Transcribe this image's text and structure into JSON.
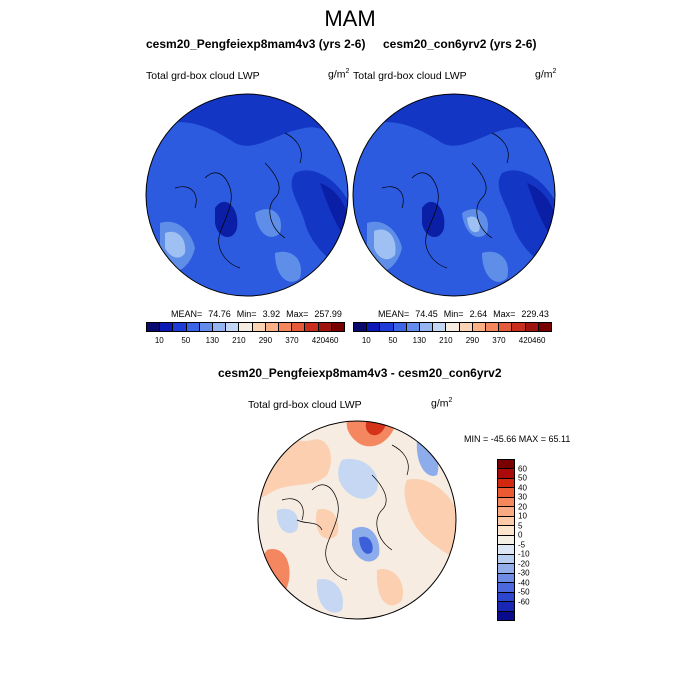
{
  "page": {
    "title": "MAM"
  },
  "panels": [
    {
      "case_title": "cesm20_Pengfeiexp8mam4v3 (yrs 2-6)",
      "variable": "Total grd-box cloud LWP",
      "units_base": "g/m",
      "units_exp": "2",
      "stats": {
        "mean_label": "MEAN=",
        "mean": "74.76",
        "min_label": "Min=",
        "min": "3.92",
        "max_label": "Max=",
        "max": "257.99"
      }
    },
    {
      "case_title": "cesm20_con6yrv2 (yrs 2-6)",
      "variable": "Total grd-box cloud LWP",
      "units_base": "g/m",
      "units_exp": "2",
      "stats": {
        "mean_label": "MEAN=",
        "mean": "74.45",
        "min_label": "Min=",
        "min": "2.64",
        "max_label": "Max=",
        "max": "229.43"
      }
    }
  ],
  "difference": {
    "title": "cesm20_Pengfeiexp8mam4v3 - cesm20_con6yrv2",
    "variable": "Total grd-box cloud LWP",
    "units_base": "g/m",
    "units_exp": "2",
    "minmax": "MIN = -45.66 MAX =  65.11"
  },
  "abs_colorbar": {
    "colors": [
      "#0a0a6e",
      "#0d19b4",
      "#1e3cd7",
      "#3c64e6",
      "#648ceb",
      "#96b4f0",
      "#c3d7f5",
      "#f5ebe1",
      "#fad2b4",
      "#faaf87",
      "#f5875f",
      "#e65a3c",
      "#c82d1e",
      "#a0140f",
      "#780000"
    ],
    "labels": [
      "10",
      "50",
      "130",
      "210",
      "290",
      "370",
      "420",
      "460"
    ]
  },
  "diff_colorbar": {
    "colors": [
      "#780000",
      "#aa0a0a",
      "#d2280f",
      "#eb5a32",
      "#f5875f",
      "#faaa82",
      "#fccaa8",
      "#fde4cc",
      "#f5f0e6",
      "#dce6f5",
      "#b9cdf0",
      "#91aeeb",
      "#6e8ce6",
      "#4b69dc",
      "#2d46cd",
      "#1928b4",
      "#0a0a8c"
    ],
    "labels": [
      "60",
      "50",
      "40",
      "30",
      "20",
      "10",
      "5",
      "0",
      "-5",
      "-10",
      "-20",
      "-30",
      "-40",
      "-50",
      "-60"
    ]
  },
  "map_fill_colors": {
    "abs_base": "#2c5be0",
    "abs_dark": "#1436c4",
    "abs_darker": "#0b1fa6",
    "abs_light": "#5f8ee8",
    "abs_lighter": "#9ec0f2",
    "diff_base": "#f6ece2",
    "diff_pos1": "#fbcfb0",
    "diff_pos2": "#f4875f",
    "diff_pos3": "#d43319",
    "diff_neg1": "#c5d7f3",
    "diff_neg2": "#8dacec",
    "diff_neg3": "#3c5fda"
  }
}
